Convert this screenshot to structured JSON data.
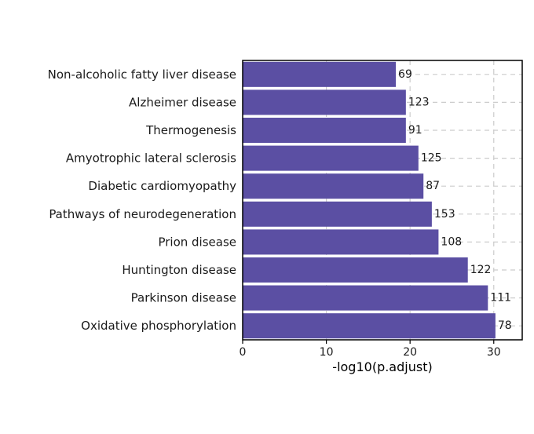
{
  "chart_data": {
    "type": "bar",
    "orientation": "horizontal",
    "categories": [
      "Non-alcoholic fatty liver disease",
      "Alzheimer disease",
      "Thermogenesis",
      "Amyotrophic lateral sclerosis",
      "Diabetic cardiomyopathy",
      "Pathways of neurodegeneration",
      "Prion disease",
      "Huntington disease",
      "Parkinson disease",
      "Oxidative phosphorylation"
    ],
    "values": [
      18.3,
      19.5,
      19.5,
      21.0,
      21.6,
      22.6,
      23.4,
      26.9,
      29.3,
      30.2
    ],
    "counts": [
      "69",
      "123",
      "91",
      "125",
      "87",
      "153",
      "108",
      "122",
      "111",
      "78"
    ],
    "xlabel": "-log10(p.adjust)",
    "ylabel": "",
    "xlim": [
      0,
      33.4
    ],
    "xticks": [
      0,
      10,
      20,
      30
    ],
    "grid": "dashed vertical and horizontal",
    "bar_color": "#5b4fa3"
  }
}
